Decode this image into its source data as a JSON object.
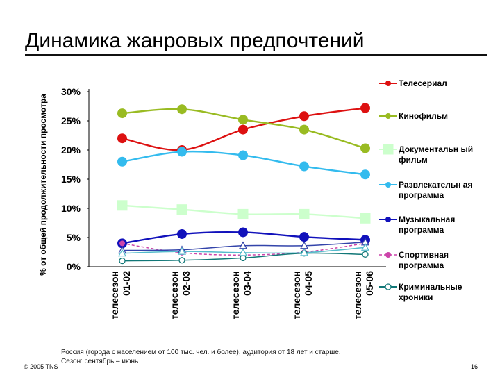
{
  "slide": {
    "title": "Динамика жанровых предпочтений",
    "footnote_line1": "Россия (города с населением от 100 тыс. чел. и более), аудитория от 18 лет и старше.",
    "footnote_line2": "Сезон: сентябрь – июнь",
    "copyright": "© 2005 TNS",
    "page_number": "16"
  },
  "chart_data": {
    "type": "line",
    "title": "",
    "ylabel": "% от общей продолжительности просмотра",
    "xlabel": "",
    "categories": [
      "телесезон 01-02",
      "телесезон 02-03",
      "телесезон 03-04",
      "телесезон 04-05",
      "телесезон 05-06"
    ],
    "yticks": [
      "0%",
      "5%",
      "10%",
      "15%",
      "20%",
      "25%",
      "30%"
    ],
    "ylim": [
      0,
      30
    ],
    "grid": false,
    "legend_position": "right",
    "series": [
      {
        "name": "Телесериал",
        "color": "#dd1111",
        "marker": "circle",
        "values": [
          22,
          20,
          23.5,
          25.8,
          27.2
        ]
      },
      {
        "name": "Кинофильм",
        "color": "#99bb22",
        "marker": "circle",
        "values": [
          26.3,
          27,
          25.2,
          23.5,
          20.3
        ]
      },
      {
        "name": "Документальн ый фильм",
        "color": "#ccffcc",
        "marker": "square",
        "values": [
          10.5,
          9.8,
          9,
          9,
          8.3
        ]
      },
      {
        "name": "Развлекательн ая программа",
        "color": "#33bbee",
        "marker": "circle",
        "values": [
          18,
          19.7,
          19.1,
          17.2,
          15.8
        ]
      },
      {
        "name": "Музыкальная программа",
        "color": "#1111bb",
        "marker": "circle",
        "values": [
          4,
          5.6,
          5.9,
          5.1,
          4.6
        ]
      },
      {
        "name": "Спортивная программа",
        "color": "#cc44aa",
        "marker": "circle",
        "values": [
          4,
          2.4,
          2,
          2.5,
          4
        ]
      },
      {
        "name": "Криминальные хроники",
        "color": "#117777",
        "marker": "ocircle",
        "values": [
          1,
          1.1,
          1.5,
          2.3,
          2.1
        ]
      },
      {
        "name": "",
        "color": "#3344aa",
        "marker": "triangle",
        "values": [
          2.8,
          2.9,
          3.6,
          3.6,
          4.2
        ]
      },
      {
        "name": "",
        "color": "#55bbcc",
        "marker": "triangle",
        "values": [
          2.3,
          2.6,
          2.4,
          2.4,
          3.3
        ]
      }
    ]
  }
}
